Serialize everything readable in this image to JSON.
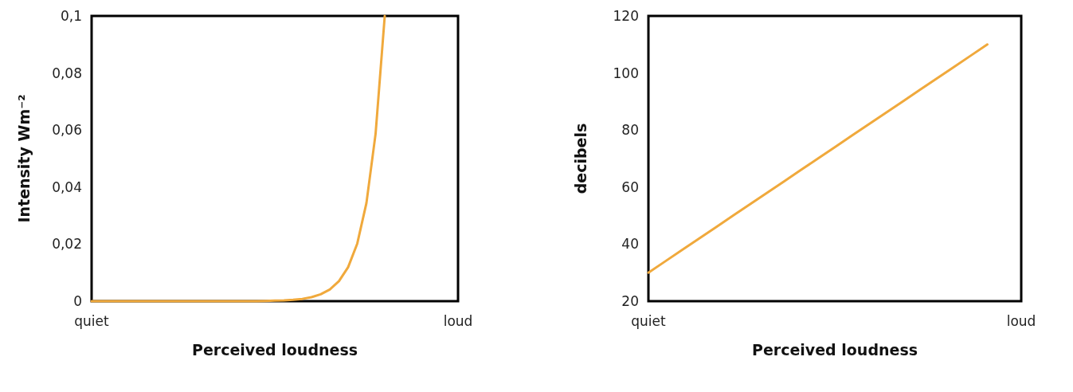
{
  "chart_data": [
    {
      "type": "line",
      "ylabel": "Intensity Wm⁻²",
      "xlabel": "Perceived loudness",
      "categories": [
        "quiet",
        null,
        null,
        null,
        null,
        null,
        null,
        null,
        null,
        null,
        null,
        null,
        null,
        null,
        null,
        null,
        null,
        null,
        null,
        null,
        null,
        null,
        null,
        null,
        null,
        null,
        null,
        null,
        null,
        null,
        null,
        null,
        null,
        null,
        null,
        null,
        null,
        null,
        null,
        null,
        "loud"
      ],
      "ylim": [
        0,
        0.1
      ],
      "yticks": [
        {
          "value": 0,
          "label": "0"
        },
        {
          "value": 0.02,
          "label": "0,02"
        },
        {
          "value": 0.04,
          "label": "0,04"
        },
        {
          "value": 0.06,
          "label": "0,06"
        },
        {
          "value": 0.08,
          "label": "0,08"
        },
        {
          "value": 0.1,
          "label": "0,1"
        }
      ],
      "grid": false,
      "marker": "none",
      "line_style": "solid",
      "series": [
        {
          "color": "#f0a93c",
          "values": [
            0,
            0,
            0,
            0,
            0,
            0,
            0,
            0,
            0,
            0,
            0,
            0,
            0,
            0,
            0,
            0,
            0,
            0,
            0,
            0.0001,
            0.0002,
            0.0003,
            0.0005,
            0.0008,
            0.0014,
            0.0024,
            0.0041,
            0.007,
            0.0119,
            0.0202,
            0.0344,
            0.0587,
            0.1,
            null,
            null,
            null,
            null,
            null,
            null,
            null,
            null
          ]
        }
      ]
    },
    {
      "type": "line",
      "ylabel": "decibels",
      "xlabel": "Perceived loudness",
      "categories": [
        "quiet",
        null,
        null,
        null,
        null,
        null,
        null,
        null,
        null,
        null,
        null,
        null,
        null,
        null,
        null,
        null,
        null,
        null,
        null,
        null,
        null,
        null,
        "loud"
      ],
      "ylim": [
        20,
        120
      ],
      "yticks": [
        20,
        40,
        60,
        80,
        100,
        120
      ],
      "grid": false,
      "marker": "none",
      "line_style": "solid",
      "series": [
        {
          "color": "#f0a93c",
          "values": [
            30,
            34,
            38,
            42,
            46,
            50,
            54,
            58,
            62,
            66,
            70,
            74,
            78,
            82,
            86,
            90,
            94,
            98,
            102,
            106,
            110,
            null,
            null
          ]
        }
      ]
    }
  ]
}
